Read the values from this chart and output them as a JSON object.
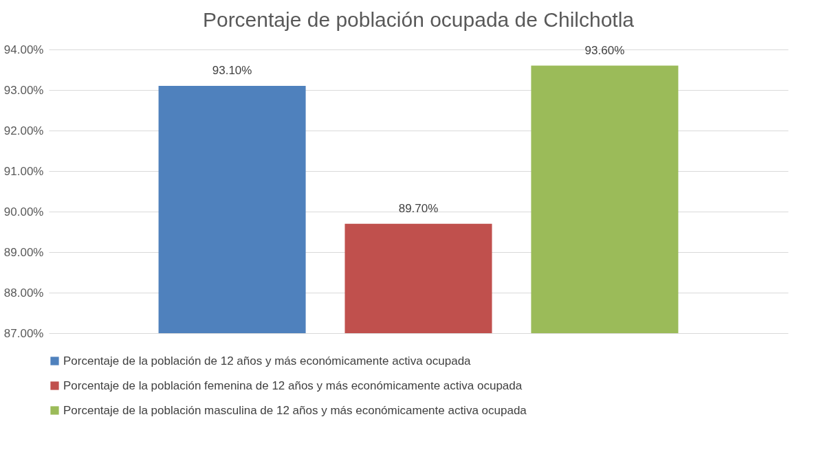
{
  "chart_data": {
    "type": "bar",
    "title": "Porcentaje de población ocupada de Chilchotla",
    "categories": [
      null
    ],
    "series": [
      {
        "name": "Porcentaje de la población de 12 años y más económicamente activa ocupada",
        "color": "#4f81bd",
        "values": [
          93.1
        ],
        "value_labels": [
          "93.10%"
        ]
      },
      {
        "name": "Porcentaje de la población femenina de 12 años y más económicamente activa ocupada",
        "color": "#c0504d",
        "values": [
          89.7
        ],
        "value_labels": [
          "89.70%"
        ]
      },
      {
        "name": "Porcentaje de la población masculina de 12 años y más económicamente activa ocupada",
        "color": "#9bbb59",
        "values": [
          93.6
        ],
        "value_labels": [
          "93.60%"
        ]
      }
    ],
    "ylim": [
      87,
      94
    ],
    "yticks": [
      {
        "value": 87,
        "label": "87.00%"
      },
      {
        "value": 88,
        "label": "88.00%"
      },
      {
        "value": 89,
        "label": "89.00%"
      },
      {
        "value": 90,
        "label": "90.00%"
      },
      {
        "value": 91,
        "label": "91.00%"
      },
      {
        "value": 92,
        "label": "92.00%"
      },
      {
        "value": 93,
        "label": "93.00%"
      },
      {
        "value": 94,
        "label": "94.00%"
      }
    ],
    "grid": "y",
    "legend": "bottom"
  }
}
